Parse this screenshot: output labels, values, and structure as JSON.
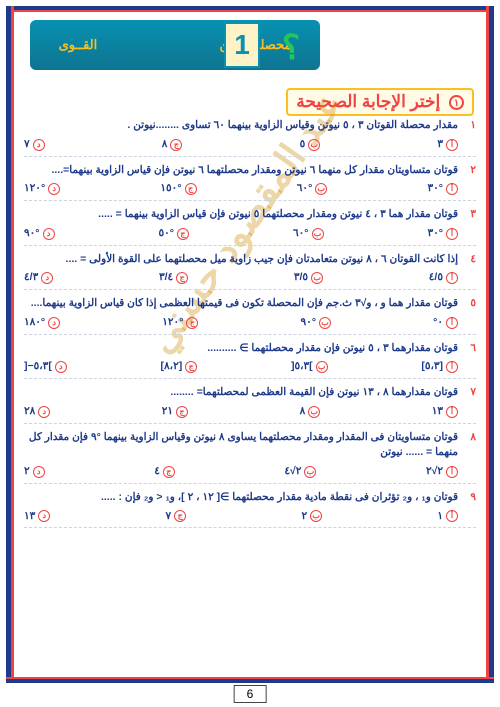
{
  "header": {
    "right_label": "القــوى",
    "left_label": "محصلة قوتين",
    "side_label": "تعريف",
    "number": "1",
    "qmark": "؟"
  },
  "section": {
    "title": "إختر الإجابة الصحيحة",
    "circle": "١"
  },
  "watermark": "عبد المقصود حسني",
  "questions": [
    {
      "n": "١",
      "text": "مقدار محصلة القوتان ٣ ، ٥ نيوتن وقياس الزاوية بينهما ٦٠ تساوى ........نيوتن .",
      "opts": [
        "٣",
        "٥",
        "٨",
        "٧"
      ]
    },
    {
      "n": "٢",
      "text": "قوتان متساويتان مقدار كل منهما ٦ نيوتن ومقدار محصلتهما ٦ نيوتن فإن قياس الزاوية بينهما=....",
      "opts": [
        "°٣٠",
        "°٦٠",
        "°١٥٠",
        "°١٢٠"
      ]
    },
    {
      "n": "٣",
      "text": "قوتان مقدار هما ٣ ، ٤ نيوتن ومقدار محصلتهما ٥ نيوتن فإن قياس الزاوية بينهما = .....",
      "opts": [
        "°٣٠",
        "°٦٠",
        "°٥٠",
        "°٩٠"
      ]
    },
    {
      "n": "٤",
      "text": "إذا كانت القوتان ٦ ، ٨ نيوتن متعامدتان فإن جيب زاوية ميل محصلتهما على القوة الأولى = ....",
      "opts": [
        "٤/٥",
        "٣/٥",
        "٣/٤",
        "٤/٣"
      ]
    },
    {
      "n": "٥",
      "text": "قوتان مقدار هما و ، و√٣ ث.جم فإن المحصلة تكون فى قيمتها العظمى إذا كان قياس الزاوية بينهما....",
      "opts": [
        "٠°",
        "°٩٠",
        "°١٢٠",
        "°١٨٠"
      ]
    },
    {
      "n": "٦",
      "text": "قوتان مقدارهما ٣ ، ٥ نيوتن فإن مقدار محصلتهما ∋ ..........",
      "opts": [
        "[٥،٣]",
        "]٥،٣[",
        "[٨،٢]",
        "]٥،٣−["
      ]
    },
    {
      "n": "٧",
      "text": "قوتان مقدارهما ٨ ، ١٣ نيوتن فإن القيمة العظمى لمحصلتهما= ........",
      "opts": [
        "١٣",
        "٨",
        "٢١",
        "٢٨"
      ]
    },
    {
      "n": "٨",
      "text": "قوتان متساويتان فى المقدار ومقدار محصلتهما يساوى ٨ نيوتن وقياس الزاوية بينهما °٩ فإن مقدار كل منهما = ...... نيوتن",
      "opts": [
        "٢√٢",
        "٢√٤",
        "٤",
        "٢"
      ],
      "sub": "فإن مقدار كل منهما = ...... نيوتن"
    },
    {
      "n": "٩",
      "text": "قوتان و₁ ، و₂ تؤثران فى نقطة مادية مقدار محصلتهما ∋[ ١٢ ، ٢ ]، و₁ < و₂ فإن : .....",
      "opts": [
        "١",
        "٢",
        "٧",
        "١٣"
      ]
    }
  ],
  "opt_labels": [
    "أ",
    "ب",
    "ج",
    "د"
  ],
  "page": "6"
}
